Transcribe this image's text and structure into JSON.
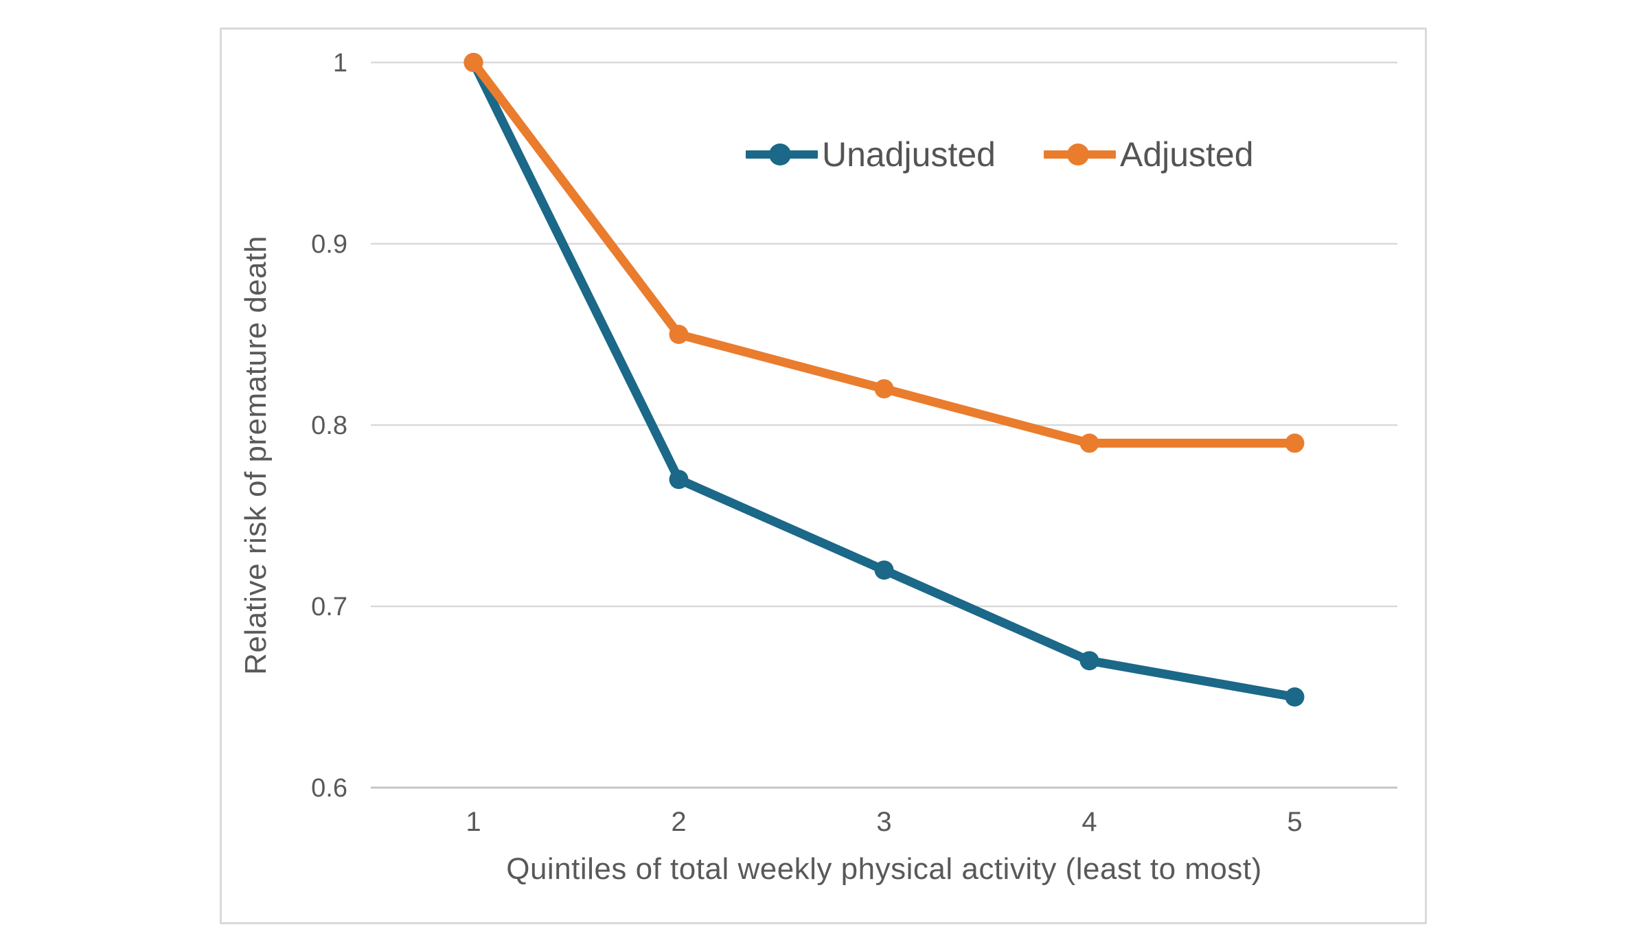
{
  "chart_data": {
    "type": "line",
    "title": "",
    "xlabel": "Quintiles of total weekly physical activity (least to most)",
    "ylabel": "Relative risk of premature death",
    "categories": [
      "1",
      "2",
      "3",
      "4",
      "5"
    ],
    "series": [
      {
        "name": "Unadjusted",
        "color": "#1B6888",
        "values": [
          1.0,
          0.77,
          0.72,
          0.67,
          0.65
        ]
      },
      {
        "name": "Adjusted",
        "color": "#EA7C2D",
        "values": [
          1.0,
          0.85,
          0.82,
          0.79,
          0.79
        ]
      }
    ],
    "ylim": [
      0.6,
      1.0
    ],
    "y_ticks": [
      1,
      0.9,
      0.8,
      0.7,
      0.6
    ],
    "y_tick_labels": [
      "1",
      "0.9",
      "0.8",
      "0.7",
      "0.6"
    ],
    "grid": "horizontal",
    "legend_position": "top-center-inside"
  },
  "style": {
    "background": "#FFFFFF",
    "frame_border": "#D9D9D9",
    "gridline": "#D9D9D9",
    "axis_line": "#C6C6C6",
    "axis_text": "#595959",
    "legend_text": "#545454"
  }
}
